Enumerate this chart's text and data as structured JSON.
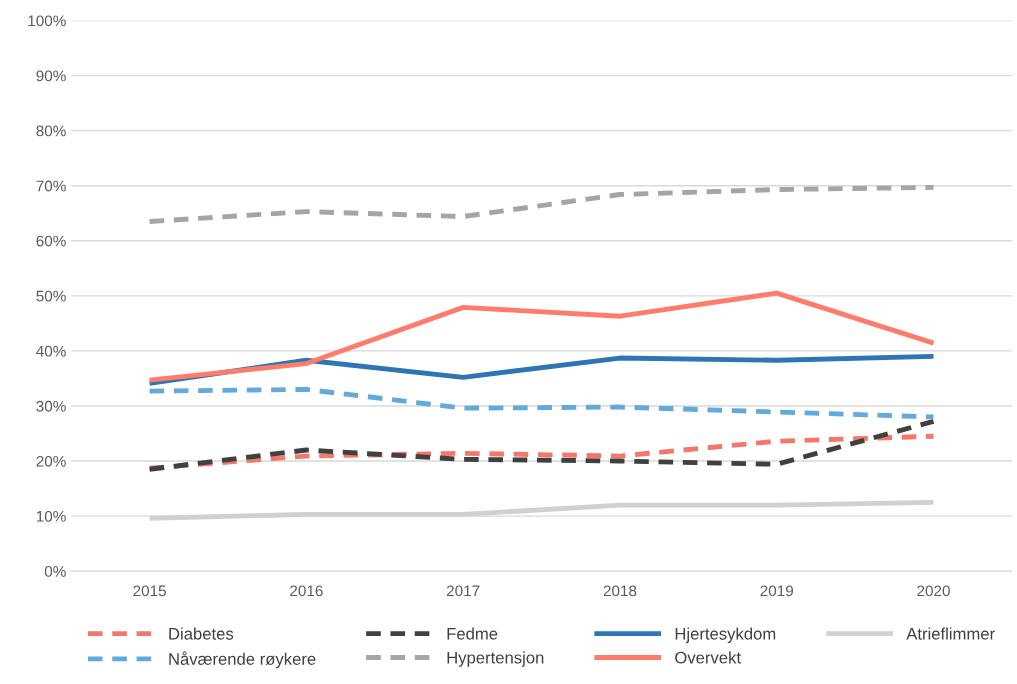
{
  "chart_data": {
    "type": "line",
    "categories": [
      "2015",
      "2016",
      "2017",
      "2018",
      "2019",
      "2020"
    ],
    "series": [
      {
        "name": "Diabetes",
        "color": "#f4776a",
        "line_style": "dashed",
        "values": [
          18.7,
          20.9,
          21.4,
          20.9,
          23.6,
          24.5
        ]
      },
      {
        "name": "Fedme",
        "color": "#404040",
        "line_style": "dashed",
        "values": [
          18.5,
          22.0,
          20.3,
          20.0,
          19.4,
          27.2
        ]
      },
      {
        "name": "Hjertesykdom",
        "color": "#2e75b6",
        "line_style": "solid",
        "values": [
          34.1,
          38.3,
          35.2,
          38.7,
          38.3,
          39.0
        ]
      },
      {
        "name": "Atrieflimmer",
        "color": "#d0d0d0",
        "line_style": "solid",
        "values": [
          9.6,
          10.3,
          10.3,
          12.0,
          12.0,
          12.5
        ]
      },
      {
        "name": "Nåværende røykere",
        "color": "#62a9dc",
        "line_style": "dashed",
        "values": [
          32.7,
          33.0,
          29.6,
          29.8,
          28.9,
          28.0
        ]
      },
      {
        "name": "Hypertensjon",
        "color": "#a5a5a5",
        "line_style": "dashed",
        "values": [
          63.5,
          65.3,
          64.4,
          68.4,
          69.3,
          69.7
        ]
      },
      {
        "name": "Overvekt",
        "color": "#ff7c6b",
        "line_style": "solid",
        "values": [
          34.7,
          37.7,
          47.9,
          46.3,
          50.5,
          41.4
        ]
      }
    ],
    "ylim": [
      0,
      100
    ],
    "yticks": [
      {
        "value": 0,
        "label": "0%"
      },
      {
        "value": 10,
        "label": "10%"
      },
      {
        "value": 20,
        "label": "20%"
      },
      {
        "value": 30,
        "label": "30%"
      },
      {
        "value": 40,
        "label": "40%"
      },
      {
        "value": 50,
        "label": "50%"
      },
      {
        "value": 60,
        "label": "60%"
      },
      {
        "value": 70,
        "label": "70%"
      },
      {
        "value": 80,
        "label": "80%"
      },
      {
        "value": 90,
        "label": "90%"
      },
      {
        "value": 100,
        "label": "100%"
      }
    ],
    "grid": "y",
    "legend": "bottom",
    "marker": "none"
  }
}
